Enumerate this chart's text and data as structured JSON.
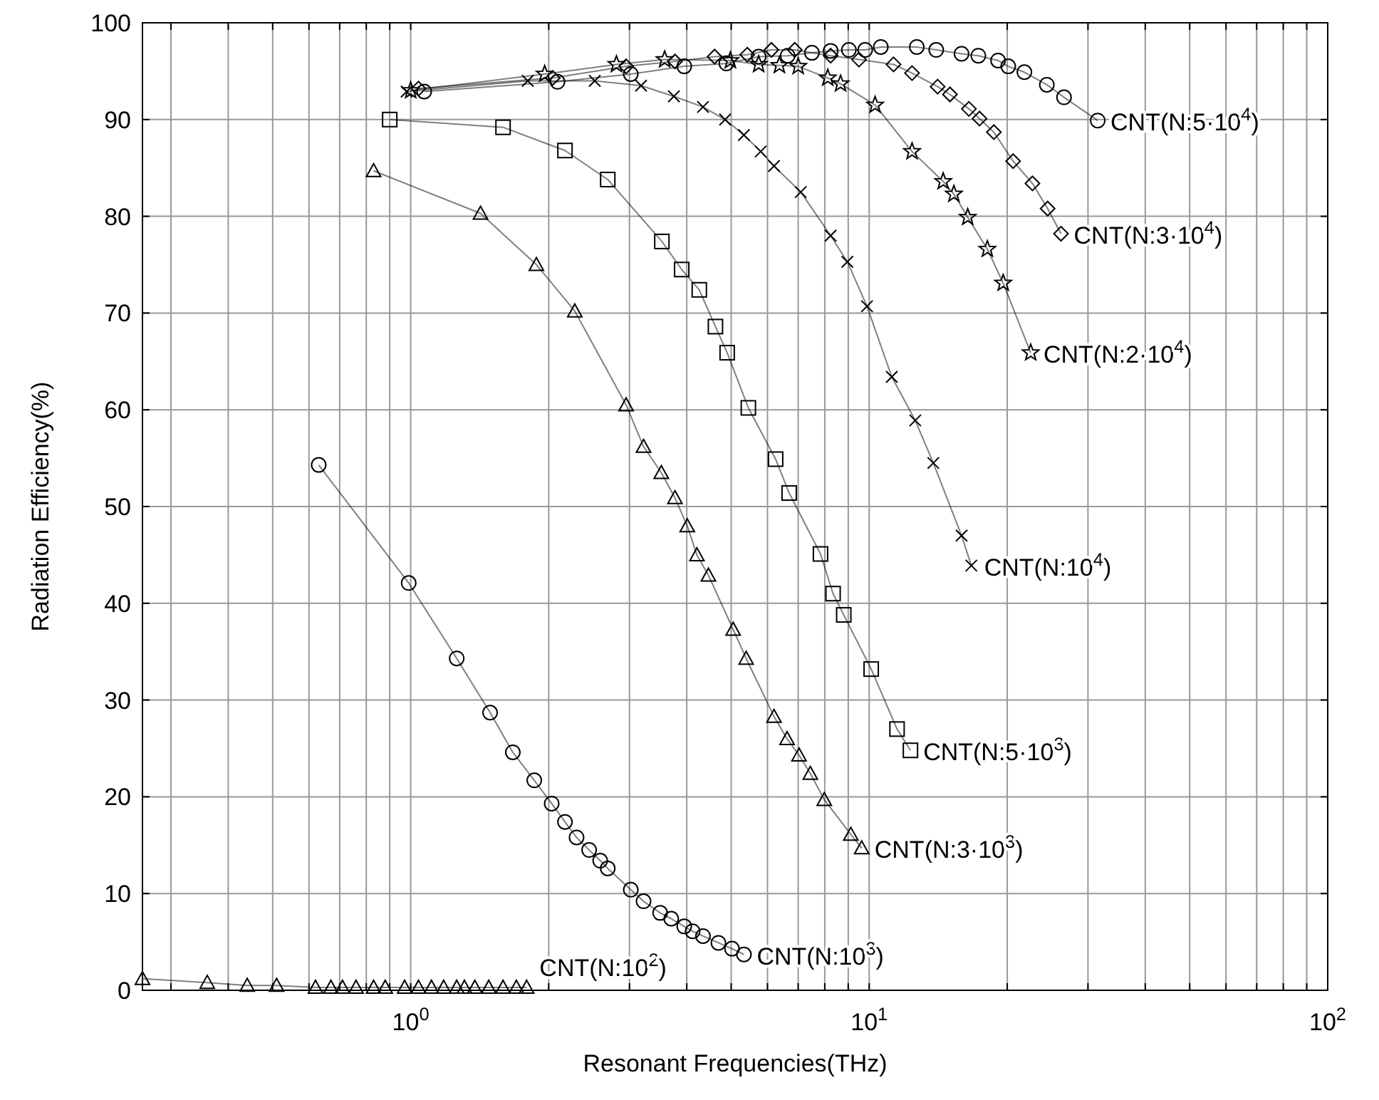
{
  "chart_data": {
    "type": "line",
    "xlabel": "Resonant Frequencies(THz)",
    "ylabel": "Radiation Efficiency(%)",
    "log": "x",
    "grid": true,
    "xlim": [
      0.26,
      100
    ],
    "xticks": [
      {
        "value": 0.3,
        "label": null
      },
      {
        "value": 0.4,
        "label": null
      },
      {
        "value": 0.5,
        "label": null
      },
      {
        "value": 0.6,
        "label": null
      },
      {
        "value": 0.7,
        "label": null
      },
      {
        "value": 0.8,
        "label": null
      },
      {
        "value": 0.9,
        "label": null
      },
      {
        "value": 1,
        "label": "10$^{0}$"
      },
      {
        "value": 2,
        "label": null
      },
      {
        "value": 3,
        "label": null
      },
      {
        "value": 4,
        "label": null
      },
      {
        "value": 5,
        "label": null
      },
      {
        "value": 6,
        "label": null
      },
      {
        "value": 7,
        "label": null
      },
      {
        "value": 8,
        "label": null
      },
      {
        "value": 9,
        "label": null
      },
      {
        "value": 10,
        "label": "10$^{1}$"
      },
      {
        "value": 20,
        "label": null
      },
      {
        "value": 30,
        "label": null
      },
      {
        "value": 40,
        "label": null
      },
      {
        "value": 50,
        "label": null
      },
      {
        "value": 60,
        "label": null
      },
      {
        "value": 70,
        "label": null
      },
      {
        "value": 80,
        "label": null
      },
      {
        "value": 90,
        "label": null
      },
      {
        "value": 100,
        "label": "10$^{2}$"
      }
    ],
    "ylim": [
      0,
      100
    ],
    "yticks": [
      0,
      10,
      20,
      30,
      40,
      50,
      60,
      70,
      80,
      90,
      100
    ],
    "series": [
      {
        "name": "CNT(N:10$^{2}$)",
        "color": "#000000",
        "marker": "triangle",
        "x": [
          0.26,
          0.36,
          0.44,
          0.51,
          0.62,
          0.67,
          0.71,
          0.76,
          0.83,
          0.88,
          0.97,
          1.04,
          1.11,
          1.18,
          1.26,
          1.31,
          1.38,
          1.48,
          1.59,
          1.7,
          1.79
        ],
        "values": [
          1.2,
          0.8,
          0.5,
          0.5,
          0.3,
          0.3,
          0.3,
          0.3,
          0.3,
          0.3,
          0.3,
          0.3,
          0.3,
          0.3,
          0.3,
          0.3,
          0.3,
          0.3,
          0.3,
          0.3,
          0.3
        ]
      },
      {
        "name": "CNT(N:10$^{3}$)",
        "color": "#000000",
        "marker": "circle",
        "x": [
          0.63,
          0.99,
          1.26,
          1.49,
          1.67,
          1.86,
          2.03,
          2.17,
          2.3,
          2.45,
          2.59,
          2.69,
          3.02,
          3.22,
          3.5,
          3.7,
          3.95,
          4.12,
          4.34,
          4.69,
          5.02,
          5.33
        ],
        "values": [
          54.3,
          42.1,
          34.3,
          28.7,
          24.6,
          21.7,
          19.3,
          17.4,
          15.8,
          14.5,
          13.4,
          12.6,
          10.4,
          9.2,
          8,
          7.4,
          6.6,
          6.1,
          5.6,
          4.9,
          4.3,
          3.7
        ]
      },
      {
        "name": "CNT(N:3·10$^{3}$)",
        "color": "#000000",
        "marker": "triangle",
        "x": [
          0.83,
          1.42,
          1.88,
          2.28,
          2.95,
          3.22,
          3.52,
          3.77,
          4.01,
          4.21,
          4.46,
          5.05,
          5.39,
          6.2,
          6.62,
          7.03,
          7.44,
          7.98,
          9.12,
          9.63
        ],
        "values": [
          84.7,
          80.3,
          75,
          70.2,
          60.5,
          56.2,
          53.5,
          50.9,
          48,
          45,
          42.9,
          37.3,
          34.3,
          28.3,
          26,
          24.3,
          22.4,
          19.7,
          16.1,
          14.7
        ]
      },
      {
        "name": "CNT(N:5·10$^{3}$)",
        "color": "#000000",
        "marker": "square",
        "x": [
          0.9,
          1.59,
          2.17,
          2.69,
          3.53,
          3.9,
          4.26,
          4.62,
          4.9,
          5.45,
          6.25,
          6.69,
          7.83,
          8.34,
          8.8,
          10.1,
          11.5,
          12.3
        ],
        "values": [
          90,
          89.2,
          86.8,
          83.8,
          77.4,
          74.5,
          72.4,
          68.6,
          65.9,
          60.2,
          54.9,
          51.4,
          45.1,
          41,
          38.8,
          33.2,
          27,
          24.8
        ]
      },
      {
        "name": "CNT(N:10$^{4}$)",
        "color": "#000000",
        "marker": "cross",
        "x": [
          0.98,
          1.8,
          2.52,
          3.18,
          3.75,
          4.34,
          4.85,
          5.33,
          5.8,
          6.2,
          7.09,
          8.24,
          8.96,
          9.89,
          11.2,
          12.6,
          13.8,
          15.9,
          16.7
        ],
        "values": [
          92.9,
          94,
          94,
          93.5,
          92.4,
          91.3,
          90,
          88.4,
          86.7,
          85.2,
          82.5,
          78,
          75.3,
          70.7,
          63.4,
          58.9,
          54.5,
          47,
          43.9
        ]
      },
      {
        "name": "CNT(N:2·10$^{4}$)",
        "color": "#000000",
        "marker": "star",
        "x": [
          1.0,
          1.96,
          2.81,
          3.58,
          4.98,
          5.74,
          6.37,
          7.0,
          8.12,
          8.66,
          10.3,
          12.4,
          14.5,
          15.3,
          16.4,
          18.1,
          19.6,
          22.5
        ],
        "values": [
          93,
          94.7,
          95.7,
          96.2,
          96.1,
          95.7,
          95.6,
          95.5,
          94.3,
          93.7,
          91.5,
          86.7,
          83.6,
          82.3,
          79.9,
          76.6,
          73.1,
          65.9
        ]
      },
      {
        "name": "CNT(N:3·10$^{4}$)",
        "color": "#000000",
        "marker": "diamond",
        "x": [
          1.04,
          2.04,
          2.95,
          3.77,
          4.6,
          5.42,
          6.12,
          6.88,
          8.24,
          9.5,
          11.3,
          12.4,
          14.1,
          15,
          16.5,
          17.4,
          18.7,
          20.6,
          22.7,
          24.5,
          26.2
        ],
        "values": [
          93.2,
          94.3,
          95.5,
          96,
          96.5,
          96.7,
          97.2,
          97.2,
          96.6,
          96.2,
          95.7,
          94.8,
          93.4,
          92.6,
          91.1,
          90.1,
          88.7,
          85.7,
          83.4,
          80.8,
          78.2
        ]
      },
      {
        "name": "CNT(N:5·10$^{4}$)",
        "color": "#000000",
        "marker": "circle",
        "x": [
          1.07,
          2.09,
          3.02,
          3.95,
          4.88,
          5.74,
          6.64,
          7.5,
          8.24,
          9.03,
          9.8,
          10.6,
          12.7,
          14,
          15.9,
          17.3,
          19.1,
          20.1,
          21.8,
          24.4,
          26.6,
          31.5
        ],
        "values": [
          92.9,
          93.9,
          94.7,
          95.5,
          95.8,
          96.5,
          96.6,
          96.9,
          97.1,
          97.2,
          97.2,
          97.5,
          97.5,
          97.2,
          96.8,
          96.6,
          96.1,
          95.5,
          94.9,
          93.6,
          92.3,
          89.9
        ]
      }
    ]
  }
}
